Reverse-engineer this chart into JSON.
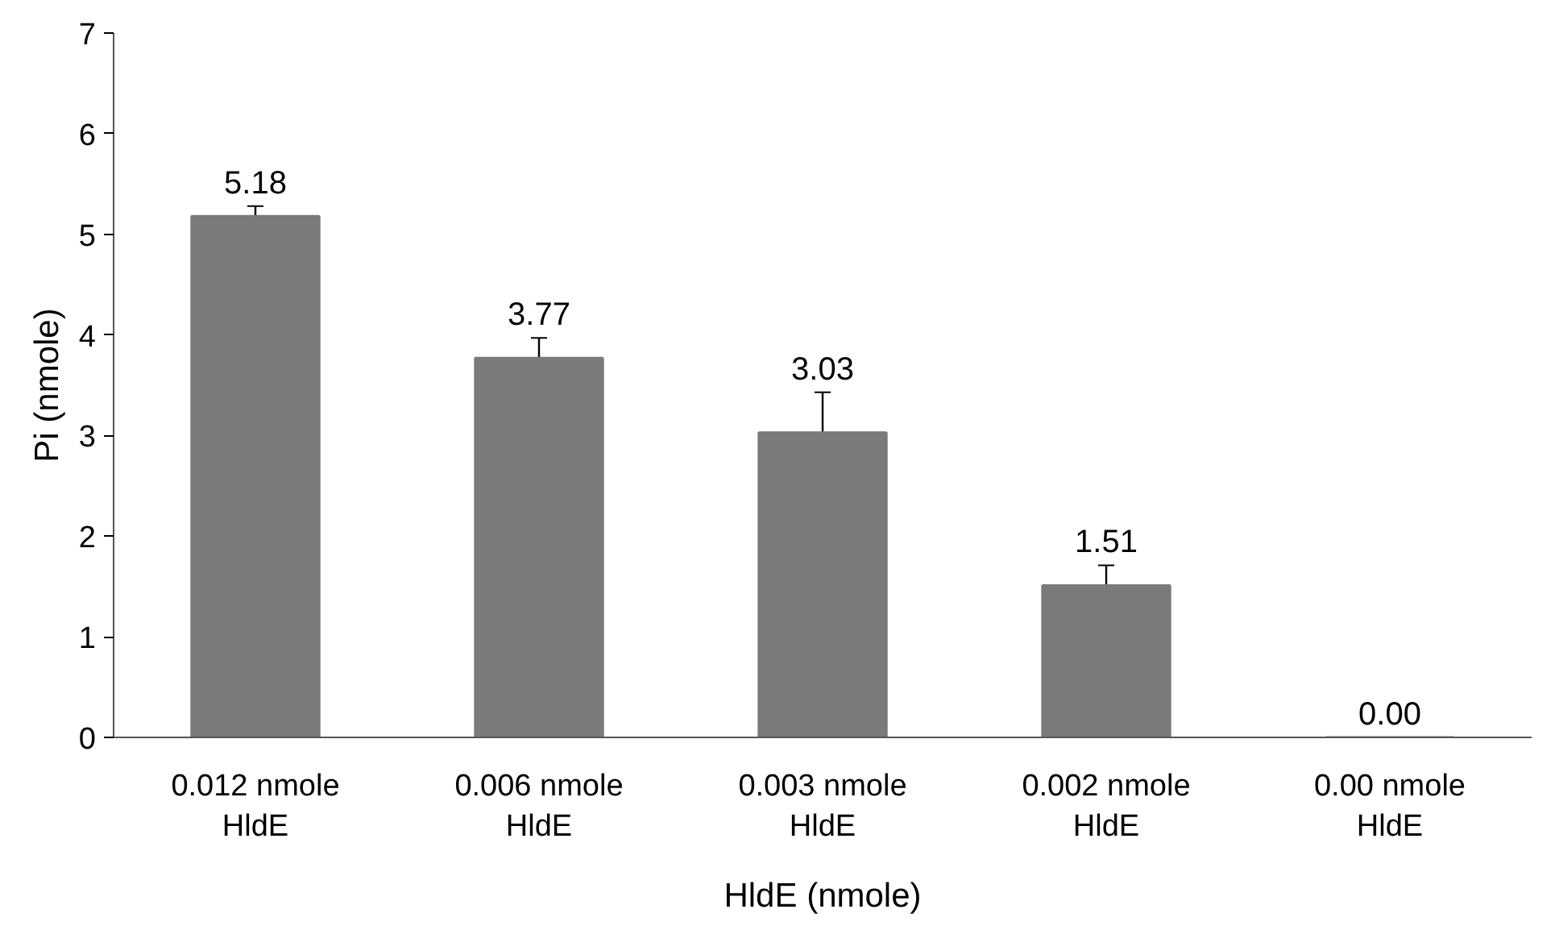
{
  "chart_data": {
    "type": "bar",
    "xlabel": "HldE (nmole)",
    "ylabel": "Pi (nmole)",
    "categories": [
      "0.012 nmole\nHldE",
      "0.006 nmole\nHldE",
      "0.003 nmole\nHldE",
      "0.002 nmole\nHldE",
      "0.00 nmole\nHldE"
    ],
    "values": [
      5.18,
      3.77,
      3.03,
      1.51,
      0.0
    ],
    "errors": [
      0.1,
      0.2,
      0.4,
      0.2,
      null
    ],
    "value_labels": [
      "5.18",
      "3.77",
      "3.03",
      "1.51",
      "0.00"
    ],
    "color": "#7a7a7a",
    "ylim": [
      0,
      7
    ],
    "yticks": [
      0,
      1,
      2,
      3,
      4,
      5,
      6,
      7
    ],
    "grid": false
  }
}
